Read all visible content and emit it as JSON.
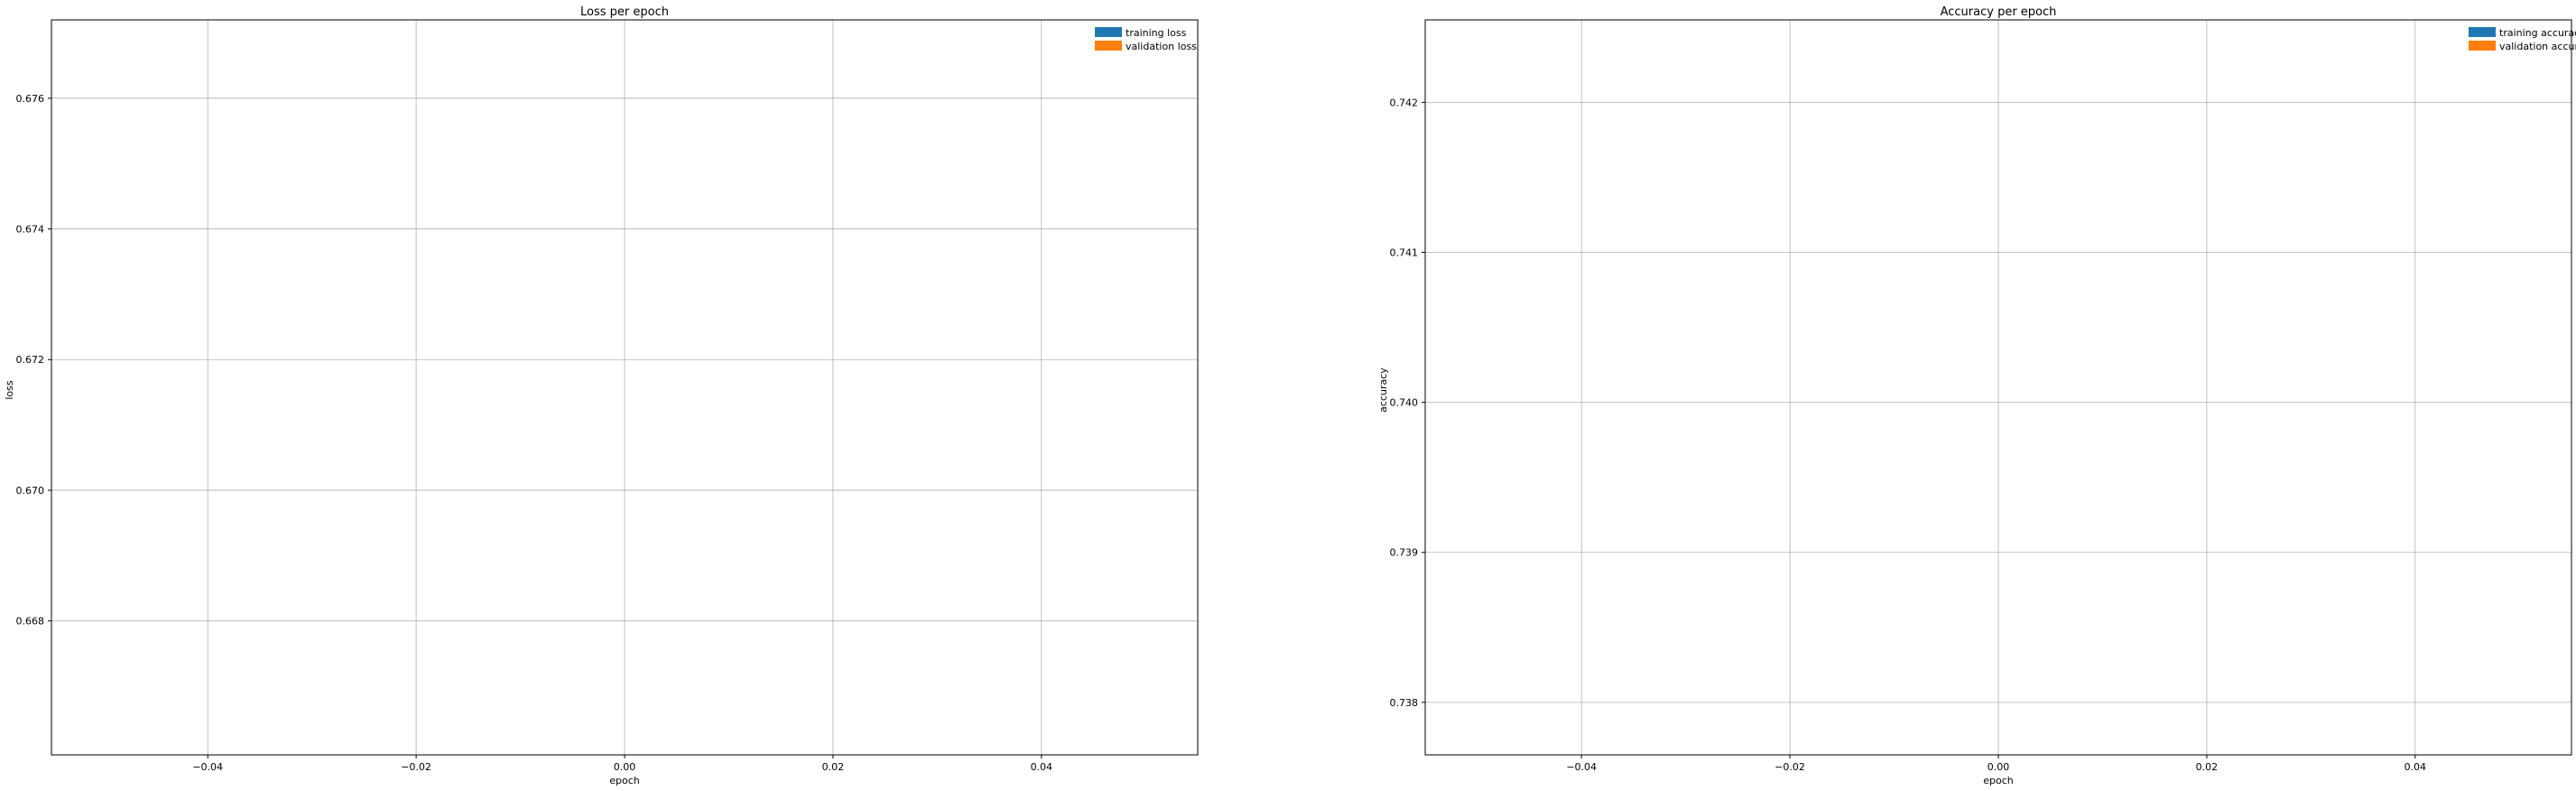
{
  "chart_data": [
    {
      "id": "loss",
      "type": "bar",
      "title": "Loss per epoch",
      "xlabel": "epoch",
      "ylabel": "loss",
      "xlim": [
        -0.055,
        0.055
      ],
      "ylim": [
        0.66595,
        0.6772
      ],
      "xticks": [
        -0.04,
        -0.02,
        0.0,
        0.02,
        0.04
      ],
      "xtick_labels": [
        "−0.04",
        "−0.02",
        "0.00",
        "0.02",
        "0.04"
      ],
      "yticks": [
        0.668,
        0.67,
        0.672,
        0.674,
        0.676
      ],
      "ytick_labels": [
        "0.668",
        "0.670",
        "0.672",
        "0.674",
        "0.676"
      ],
      "grid": true,
      "legend_position": "top-right",
      "series": [
        {
          "name": "training loss",
          "color": "#1f77b4",
          "values": []
        },
        {
          "name": "validation loss",
          "color": "#ff7f0e",
          "values": []
        }
      ]
    },
    {
      "id": "accuracy",
      "type": "bar",
      "title": "Accuracy per epoch",
      "xlabel": "epoch",
      "ylabel": "accuracy",
      "xlim": [
        -0.055,
        0.055
      ],
      "ylim": [
        0.73765,
        0.74255
      ],
      "xticks": [
        -0.04,
        -0.02,
        0.0,
        0.02,
        0.04
      ],
      "xtick_labels": [
        "−0.04",
        "−0.02",
        "0.00",
        "0.02",
        "0.04"
      ],
      "yticks": [
        0.738,
        0.739,
        0.74,
        0.741,
        0.742
      ],
      "ytick_labels": [
        "0.738",
        "0.739",
        "0.740",
        "0.741",
        "0.742"
      ],
      "grid": true,
      "legend_position": "top-right",
      "series": [
        {
          "name": "training accuracy",
          "color": "#1f77b4",
          "values": []
        },
        {
          "name": "validation accuracy",
          "color": "#ff7f0e",
          "values": []
        }
      ]
    }
  ]
}
